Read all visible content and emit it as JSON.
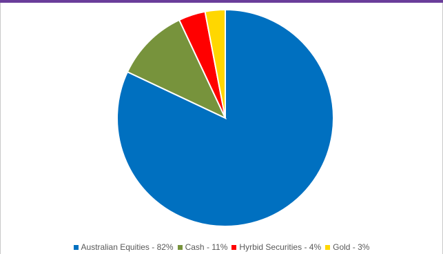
{
  "colors": {
    "top_bar": "#6a3d9a",
    "slice_border": "#ffffff"
  },
  "chart_data": {
    "type": "pie",
    "title": "",
    "start_angle_deg": 0,
    "direction": "clockwise",
    "legend_position": "bottom",
    "slices": [
      {
        "label": "Australian Equities - 82%",
        "category": "Australian Equities",
        "value": 82,
        "color": "#0070c0"
      },
      {
        "label": "Cash - 11%",
        "category": "Cash",
        "value": 11,
        "color": "#77933c"
      },
      {
        "label": "Hyrbid Securities - 4%",
        "category": "Hyrbid Securities",
        "value": 4,
        "color": "#ff0000"
      },
      {
        "label": "Gold - 3%",
        "category": "Gold",
        "value": 3,
        "color": "#ffd700"
      }
    ]
  }
}
